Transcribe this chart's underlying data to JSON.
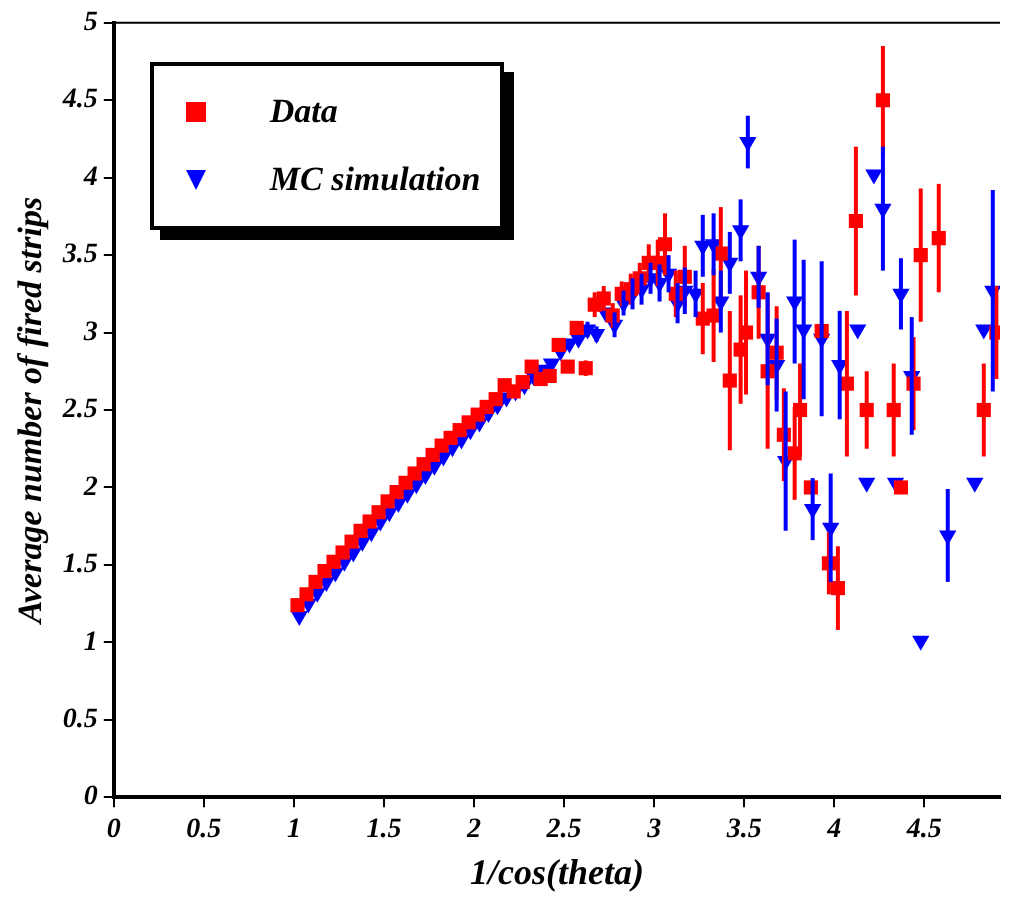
{
  "chart_data": {
    "type": "scatter",
    "xlabel": "1/cos(theta)",
    "ylabel": "Average number of fired strips",
    "xlim": [
      0,
      4.92
    ],
    "ylim": [
      0,
      5
    ],
    "xticks": [
      0,
      0.5,
      1,
      1.5,
      2,
      2.5,
      3,
      3.5,
      4,
      4.5
    ],
    "yticks": [
      0,
      0.5,
      1,
      1.5,
      2,
      2.5,
      3,
      3.5,
      4,
      4.5,
      5
    ],
    "grid": false,
    "legend": "top left",
    "series": [
      {
        "name": "Data",
        "color": "#ff0000",
        "marker": "square",
        "x": [
          1.02,
          1.07,
          1.12,
          1.17,
          1.22,
          1.27,
          1.32,
          1.37,
          1.42,
          1.47,
          1.52,
          1.57,
          1.62,
          1.67,
          1.72,
          1.77,
          1.82,
          1.87,
          1.92,
          1.97,
          2.02,
          2.07,
          2.12,
          2.17,
          2.22,
          2.27,
          2.32,
          2.37,
          2.42,
          2.47,
          2.52,
          2.57,
          2.62,
          2.67,
          2.72,
          2.77,
          2.82,
          2.87,
          2.92,
          2.97,
          3.02,
          3.06,
          3.12,
          3.17,
          3.27,
          3.33,
          3.37,
          3.42,
          3.48,
          3.51,
          3.58,
          3.63,
          3.68,
          3.72,
          3.78,
          3.81,
          3.87,
          3.93,
          3.97,
          4.02,
          4.07,
          4.12,
          4.18,
          4.27,
          4.33,
          4.37,
          4.44,
          4.48,
          4.58,
          4.83,
          4.9
        ],
        "values": [
          1.24,
          1.31,
          1.39,
          1.46,
          1.52,
          1.58,
          1.65,
          1.72,
          1.78,
          1.84,
          1.91,
          1.97,
          2.03,
          2.09,
          2.15,
          2.21,
          2.27,
          2.32,
          2.37,
          2.42,
          2.47,
          2.52,
          2.57,
          2.66,
          2.62,
          2.68,
          2.78,
          2.7,
          2.72,
          2.92,
          2.78,
          3.03,
          2.77,
          3.18,
          3.22,
          3.11,
          3.25,
          3.28,
          3.35,
          3.45,
          3.45,
          3.57,
          3.25,
          3.36,
          3.09,
          3.11,
          3.51,
          2.69,
          2.89,
          3.0,
          3.26,
          2.75,
          2.87,
          2.34,
          2.22,
          2.5,
          2.0,
          3.01,
          1.51,
          1.35,
          2.67,
          3.72,
          2.5,
          4.5,
          2.5,
          2.0,
          2.67,
          3.5,
          3.61,
          2.5,
          3.0
        ],
        "errors": [
          null,
          null,
          null,
          null,
          null,
          null,
          null,
          null,
          null,
          null,
          null,
          null,
          null,
          null,
          null,
          null,
          null,
          null,
          null,
          null,
          null,
          null,
          null,
          null,
          null,
          null,
          null,
          null,
          null,
          null,
          null,
          null,
          0.05,
          0.08,
          0.08,
          0.08,
          0.08,
          0.1,
          0.1,
          0.12,
          0.15,
          0.2,
          0.15,
          0.2,
          0.23,
          0.3,
          0.3,
          0.45,
          0.35,
          0.4,
          0.3,
          0.5,
          0.3,
          0.3,
          0.3,
          0.3,
          null,
          null,
          0.2,
          0.27,
          0.47,
          0.48,
          0.25,
          0.35,
          0.3,
          null,
          0.3,
          0.43,
          0.35,
          0.3,
          0.3
        ]
      },
      {
        "name": "MC simulation",
        "color": "#0000ff",
        "marker": "triangle",
        "x": [
          1.03,
          1.08,
          1.13,
          1.18,
          1.23,
          1.28,
          1.33,
          1.38,
          1.43,
          1.48,
          1.53,
          1.58,
          1.63,
          1.68,
          1.73,
          1.78,
          1.83,
          1.88,
          1.93,
          1.98,
          2.03,
          2.08,
          2.13,
          2.18,
          2.23,
          2.28,
          2.33,
          2.38,
          2.43,
          2.48,
          2.53,
          2.58,
          2.63,
          2.68,
          2.73,
          2.78,
          2.83,
          2.88,
          2.93,
          2.98,
          3.03,
          3.08,
          3.13,
          3.17,
          3.23,
          3.27,
          3.33,
          3.37,
          3.42,
          3.48,
          3.52,
          3.58,
          3.63,
          3.68,
          3.73,
          3.78,
          3.83,
          3.88,
          3.93,
          3.98,
          4.03,
          4.13,
          4.18,
          4.22,
          4.27,
          4.34,
          4.37,
          4.43,
          4.48,
          4.63,
          4.78,
          4.83,
          4.88
        ],
        "values": [
          1.17,
          1.25,
          1.32,
          1.39,
          1.45,
          1.52,
          1.58,
          1.65,
          1.71,
          1.78,
          1.84,
          1.9,
          1.96,
          2.02,
          2.08,
          2.14,
          2.2,
          2.26,
          2.31,
          2.37,
          2.42,
          2.48,
          2.53,
          2.58,
          2.62,
          2.66,
          2.72,
          2.76,
          2.8,
          2.88,
          2.93,
          2.96,
          3.02,
          2.99,
          3.13,
          3.05,
          3.19,
          3.25,
          3.28,
          3.35,
          3.32,
          3.38,
          3.19,
          3.27,
          3.25,
          3.56,
          3.57,
          3.2,
          3.45,
          3.66,
          4.23,
          3.36,
          2.96,
          2.79,
          2.17,
          3.2,
          3.02,
          1.86,
          2.96,
          1.74,
          2.79,
          3.02,
          2.03,
          4.02,
          3.8,
          2.03,
          3.25,
          2.72,
          1.01,
          1.69,
          2.03,
          3.02,
          3.27
        ],
        "errors": [
          null,
          null,
          null,
          null,
          null,
          null,
          null,
          null,
          null,
          null,
          null,
          null,
          null,
          null,
          null,
          null,
          null,
          null,
          null,
          null,
          null,
          null,
          null,
          null,
          null,
          null,
          null,
          null,
          null,
          null,
          null,
          null,
          0.05,
          0.05,
          null,
          0.08,
          0.08,
          0.1,
          0.1,
          0.1,
          0.12,
          0.12,
          0.13,
          0.15,
          0.15,
          0.2,
          0.2,
          0.2,
          0.2,
          0.2,
          0.17,
          0.2,
          0.3,
          0.3,
          0.45,
          0.4,
          0.45,
          0.2,
          0.5,
          0.35,
          0.35,
          null,
          null,
          null,
          0.4,
          null,
          0.23,
          0.38,
          null,
          0.3,
          null,
          null,
          0.65
        ]
      }
    ]
  }
}
